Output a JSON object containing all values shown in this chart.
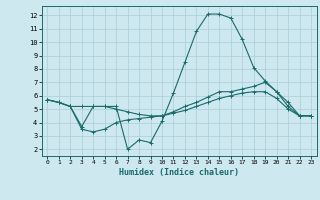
{
  "xlabel": "Humidex (Indice chaleur)",
  "xlim": [
    -0.5,
    23.5
  ],
  "ylim": [
    1.5,
    12.7
  ],
  "yticks": [
    2,
    3,
    4,
    5,
    6,
    7,
    8,
    9,
    10,
    11,
    12
  ],
  "xticks": [
    0,
    1,
    2,
    3,
    4,
    5,
    6,
    7,
    8,
    9,
    10,
    11,
    12,
    13,
    14,
    15,
    16,
    17,
    18,
    19,
    20,
    21,
    22,
    23
  ],
  "bg_color": "#cde8ee",
  "grid_color": "#aacdd6",
  "line_color": "#1a6b6b",
  "series": [
    {
      "x": [
        0,
        1,
        2,
        3,
        4,
        5,
        6,
        7,
        8,
        9,
        10,
        11,
        12,
        13,
        14,
        15,
        16,
        17,
        18,
        19,
        20,
        21,
        22,
        23
      ],
      "y": [
        5.7,
        5.5,
        5.2,
        3.7,
        5.2,
        5.2,
        5.2,
        2.0,
        2.7,
        2.5,
        4.1,
        6.2,
        8.5,
        10.8,
        12.1,
        12.1,
        11.8,
        10.2,
        8.1,
        7.1,
        6.3,
        5.2,
        4.5,
        4.5
      ]
    },
    {
      "x": [
        0,
        1,
        2,
        3,
        4,
        5,
        6,
        7,
        8,
        9,
        10,
        11,
        12,
        13,
        14,
        15,
        16,
        17,
        18,
        19,
        20,
        21,
        22,
        23
      ],
      "y": [
        5.7,
        5.5,
        5.2,
        5.2,
        5.2,
        5.2,
        5.0,
        4.8,
        4.6,
        4.5,
        4.5,
        4.8,
        5.2,
        5.5,
        5.9,
        6.3,
        6.3,
        6.5,
        6.7,
        7.0,
        6.3,
        5.5,
        4.5,
        4.5
      ]
    },
    {
      "x": [
        0,
        1,
        2,
        3,
        4,
        5,
        6,
        7,
        8,
        9,
        10,
        11,
        12,
        13,
        14,
        15,
        16,
        17,
        18,
        19,
        20,
        21,
        22,
        23
      ],
      "y": [
        5.7,
        5.5,
        5.2,
        3.5,
        3.3,
        3.5,
        4.0,
        4.2,
        4.3,
        4.4,
        4.5,
        4.7,
        4.9,
        5.2,
        5.5,
        5.8,
        6.0,
        6.2,
        6.3,
        6.3,
        5.8,
        5.0,
        4.5,
        4.5
      ]
    }
  ]
}
